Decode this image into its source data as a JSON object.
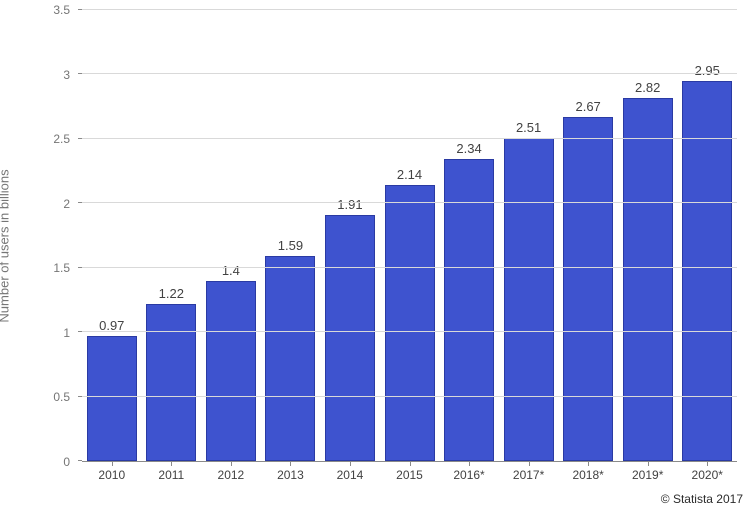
{
  "chart": {
    "type": "bar",
    "y_axis_title": "Number of users in billions",
    "ylim": [
      0,
      3.5
    ],
    "ytick_step": 0.5,
    "y_ticks": [
      "0",
      "0.5",
      "1",
      "1.5",
      "2",
      "2.5",
      "3",
      "3.5"
    ],
    "categories": [
      "2010",
      "2011",
      "2012",
      "2013",
      "2014",
      "2015",
      "2016*",
      "2017*",
      "2018*",
      "2019*",
      "2020*"
    ],
    "values": [
      0.97,
      1.22,
      1.4,
      1.59,
      1.91,
      2.14,
      2.34,
      2.51,
      2.67,
      2.82,
      2.95
    ],
    "value_labels": [
      "0.97",
      "1.22",
      "1.4",
      "1.59",
      "1.91",
      "2.14",
      "2.34",
      "2.51",
      "2.67",
      "2.82",
      "2.95"
    ],
    "bar_color": "#3e53cf",
    "bar_border_color": "#2a3aa3",
    "bar_width_pct": 84,
    "grid_color": "#d9d9d9",
    "axis_line_color": "#8a8a8a",
    "tick_label_color": "#424242",
    "axis_title_color": "#757575",
    "value_label_color": "#424242",
    "background_color": "#ffffff",
    "label_fontsize": 13,
    "tick_fontsize": 12
  },
  "source": "© Statista 2017"
}
